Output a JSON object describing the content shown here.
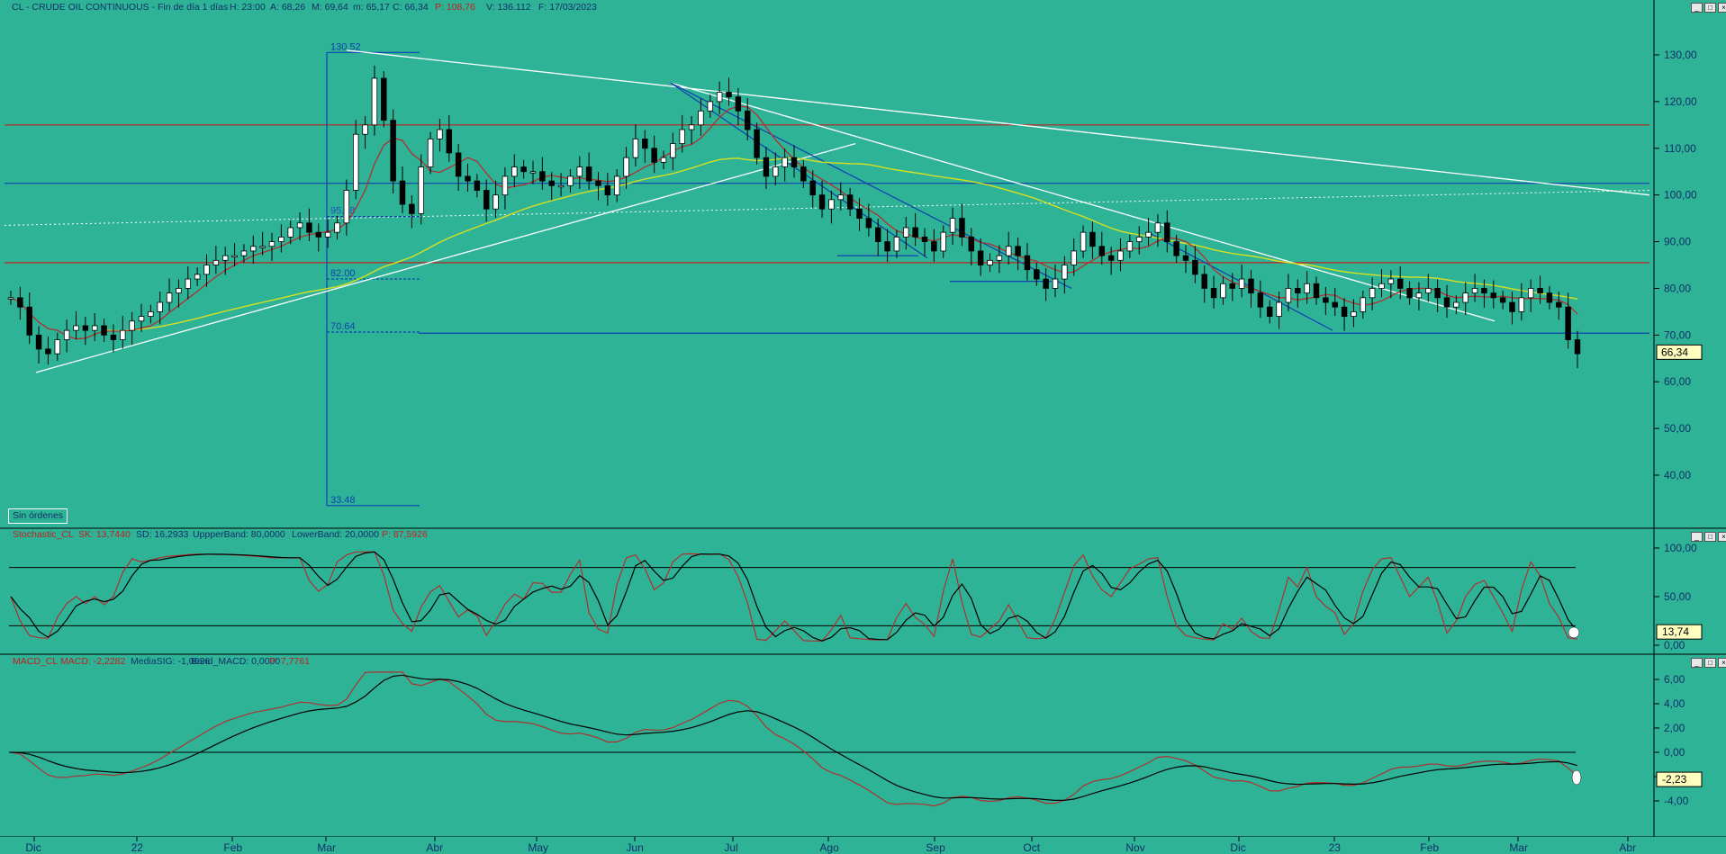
{
  "header": {
    "symbol": "CL - CRUDE OIL CONTINUOUS - Fin de día 1 días",
    "h": "H: 23:00",
    "a": "A: 68,26",
    "m_max": "M: 69,64",
    "m_min": "m: 65,17",
    "c": "C: 66,34",
    "p": "P: 108,76",
    "v": "V: 136.112",
    "f": "F: 17/03/2023"
  },
  "sin_ordenes": "Sin órdenes",
  "colors": {
    "background": "#2eb396",
    "candle": "#000000",
    "ma_short": "#b03030",
    "ma_long": "#d8e020",
    "support": "#1040b0",
    "resistance": "#c02020",
    "trend_white": "#ffffff"
  },
  "chart_data": [
    {
      "type": "candlestick",
      "title": "CL - CRUDE OIL CONTINUOUS",
      "y_ticks": [
        "130,00",
        "120,00",
        "110,00",
        "100,00",
        "90,00",
        "80,00",
        "70,00",
        "60,00",
        "50,00",
        "40,00"
      ],
      "ylim": [
        30,
        136
      ],
      "x_ticks": [
        "Dic",
        "22",
        "Feb",
        "Mar",
        "Abr",
        "May",
        "Jun",
        "Jul",
        "Ago",
        "Sep",
        "Oct",
        "Nov",
        "Dic",
        "23",
        "Feb",
        "Mar",
        "Abr"
      ],
      "last_value": "66,34",
      "fib_levels": [
        "130.52",
        "95.38",
        "82.00",
        "70.64",
        "33.48"
      ],
      "horizontal_lines": [
        115,
        102.5,
        85.5,
        70.4
      ],
      "closes": [
        78,
        76,
        70,
        67,
        66,
        69,
        71,
        72,
        71,
        72,
        70,
        69,
        71,
        73,
        74,
        75,
        77,
        79,
        80,
        82,
        83,
        85,
        86,
        87,
        87,
        88,
        89,
        89,
        90,
        91,
        93,
        94,
        92,
        91,
        92,
        94,
        101,
        113,
        115,
        125,
        116,
        103,
        98,
        96,
        106,
        112,
        114,
        109,
        104,
        103,
        101,
        97,
        100,
        104,
        106,
        105,
        105,
        103,
        102,
        102,
        104,
        106,
        103,
        102,
        100,
        104,
        108,
        112,
        110,
        107,
        108,
        111,
        114,
        115,
        118,
        120,
        122,
        121,
        118,
        114,
        108,
        104,
        106,
        108,
        106,
        103,
        100,
        97,
        99,
        100,
        97,
        95,
        93,
        90,
        88,
        91,
        93,
        91,
        90,
        88,
        92,
        95,
        91,
        88,
        85,
        86,
        87,
        89,
        87,
        84,
        82,
        80,
        82,
        85,
        88,
        92,
        89,
        87,
        86,
        88,
        90,
        91,
        92,
        94,
        90,
        87,
        86,
        83,
        80,
        78,
        81,
        80,
        82,
        79,
        76,
        74,
        77,
        80,
        79,
        81,
        78,
        77,
        76,
        74,
        75,
        78,
        80,
        81,
        82,
        80,
        78,
        79,
        80,
        78,
        76,
        77,
        79,
        80,
        79,
        78,
        77,
        75,
        78,
        80,
        79,
        77,
        76,
        69,
        66
      ],
      "ma_short": "red",
      "ma_long": "yellow"
    },
    {
      "type": "line",
      "title": "Stochastic_CL",
      "series": [
        {
          "name": "SK",
          "value": 13.744
        },
        {
          "name": "SD",
          "value": 16.2933
        }
      ],
      "upper_band": 80,
      "lower_band": 20,
      "p": "87,5926",
      "y_ticks": [
        "100,00",
        "50,00",
        "0,00"
      ],
      "ylim": [
        0,
        100
      ],
      "last_value": "13,74"
    },
    {
      "type": "line",
      "title": "MACD_CL",
      "series": [
        {
          "name": "MACD",
          "value": -2.2282
        },
        {
          "name": "MediaSIG",
          "value": -1.0626
        }
      ],
      "band": 0,
      "p": "7,7761",
      "y_ticks": [
        "6,00",
        "4,00",
        "2,00",
        "0,00",
        "-2,00",
        "-4,00"
      ],
      "ylim": [
        -6,
        7
      ],
      "last_value": "-2,23"
    }
  ],
  "stoch_header": {
    "name": "Stochastic_CL",
    "sk": "SK: 13,7440",
    "sd": "SD: 16,2933",
    "upper": "UppperBand: 80,0000",
    "lower": "LowerBand: 20,0000",
    "p": "P: 87,5926"
  },
  "macd_header": {
    "name": "MACD_CL",
    "macd": "MACD: -2,2282",
    "sig": "MediaSIG: -1,0626",
    "band": "Band_MACD: 0,0000",
    "p": "P: 7,7761"
  }
}
